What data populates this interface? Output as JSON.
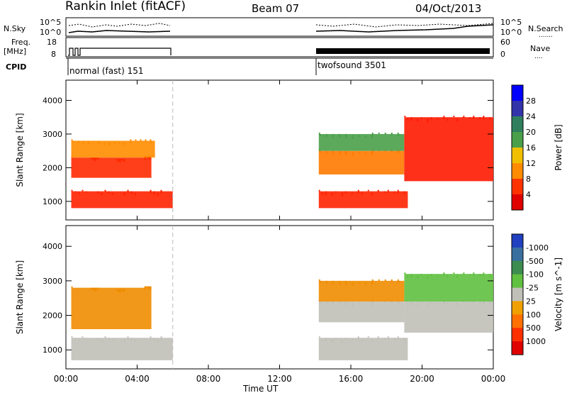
{
  "header": {
    "title": "Rankin Inlet (fitACF)",
    "beam": "Beam 07",
    "date": "04/Oct/2013"
  },
  "strips": {
    "nsky_label": "N.Sky",
    "nsearch_label": "N.Search",
    "nsearch_dots": ".......",
    "nsky_ticks": [
      "10^5",
      "10^0"
    ],
    "nsearch_ticks": [
      "10^5",
      "10^0"
    ],
    "freq_label_line1": "Freq.",
    "freq_label_line2": "[MHz]",
    "freq_ticks": [
      "18",
      "8"
    ],
    "nave_label": "Nave",
    "nave_dots": "....",
    "nave_ticks": [
      "60",
      "0"
    ],
    "cpid_label": "CPID",
    "cpid_segments": [
      {
        "label": "normal (fast) 151",
        "start_h": 0.0,
        "end_h": 6.0
      },
      {
        "label": "twofsound 3501",
        "start_h": 14.2,
        "end_h": 24.0
      }
    ]
  },
  "chart_data": [
    {
      "type": "heatmap",
      "name": "power-panel",
      "ylabel": "Slant Range [km]",
      "yticks": [
        "1000",
        "2000",
        "3000",
        "4000"
      ],
      "ylim": [
        450,
        4600
      ],
      "colorbar_label": "Power [dB]",
      "colorbar_ticks": [
        "4",
        "8",
        "12",
        "16",
        "20",
        "24",
        "28"
      ],
      "colorbar_colors": [
        "#0000ff",
        "#3333aa",
        "#2f7f5f",
        "#4aa04a",
        "#f0c000",
        "#ff8c00",
        "#ff3300",
        "#e00000"
      ],
      "regions": [
        {
          "start_h": 0.3,
          "end_h": 6.0,
          "range_km": [
            800,
            1300
          ],
          "color": "#ff2200"
        },
        {
          "start_h": 0.3,
          "end_h": 4.8,
          "range_km": [
            1700,
            2300
          ],
          "color": "#ff2a00"
        },
        {
          "start_h": 0.3,
          "end_h": 5.0,
          "range_km": [
            2300,
            2800
          ],
          "color": "#ff8c00"
        },
        {
          "start_h": 14.2,
          "end_h": 19.2,
          "range_km": [
            800,
            1300
          ],
          "color": "#ff2200"
        },
        {
          "start_h": 14.2,
          "end_h": 19.0,
          "range_km": [
            1800,
            2500
          ],
          "color": "#ff7a00"
        },
        {
          "start_h": 14.2,
          "end_h": 19.0,
          "range_km": [
            2500,
            3000
          ],
          "color": "#4aa04a"
        },
        {
          "start_h": 19.0,
          "end_h": 24.0,
          "range_km": [
            1600,
            3500
          ],
          "color": "#ff1a00"
        }
      ]
    },
    {
      "type": "heatmap",
      "name": "velocity-panel",
      "ylabel": "Slant Range [km]",
      "yticks": [
        "1000",
        "2000",
        "3000",
        "4000"
      ],
      "ylim": [
        450,
        4600
      ],
      "colorbar_label": "Velocity [m s^-1]",
      "colorbar_ticks": [
        "1000",
        "500",
        "100",
        "25",
        "-25",
        "-100",
        "-500",
        "-1000"
      ],
      "colorbar_colors": [
        "#2040c0",
        "#3a70a0",
        "#3c8c50",
        "#60c040",
        "#c0c0b8",
        "#f0a000",
        "#ff7000",
        "#ff3000",
        "#e00000"
      ],
      "regions": [
        {
          "start_h": 0.3,
          "end_h": 6.0,
          "range_km": [
            700,
            1350
          ],
          "color": "#c0c0b8"
        },
        {
          "start_h": 0.3,
          "end_h": 4.8,
          "range_km": [
            1600,
            2800
          ],
          "color": "#f08c00"
        },
        {
          "start_h": 14.2,
          "end_h": 19.2,
          "range_km": [
            700,
            1350
          ],
          "color": "#c0c0b8"
        },
        {
          "start_h": 14.2,
          "end_h": 19.0,
          "range_km": [
            1800,
            2400
          ],
          "color": "#c0c0b8"
        },
        {
          "start_h": 14.2,
          "end_h": 19.0,
          "range_km": [
            2400,
            3000
          ],
          "color": "#f08c00"
        },
        {
          "start_h": 19.0,
          "end_h": 24.0,
          "range_km": [
            1500,
            2400
          ],
          "color": "#c0c0b8"
        },
        {
          "start_h": 19.0,
          "end_h": 24.0,
          "range_km": [
            2400,
            3200
          ],
          "color": "#60c040"
        }
      ]
    }
  ],
  "xaxis": {
    "label": "Time UT",
    "ticks": [
      "00:00",
      "04:00",
      "08:00",
      "12:00",
      "16:00",
      "20:00",
      "00:00"
    ],
    "xlim": [
      0,
      24
    ]
  }
}
